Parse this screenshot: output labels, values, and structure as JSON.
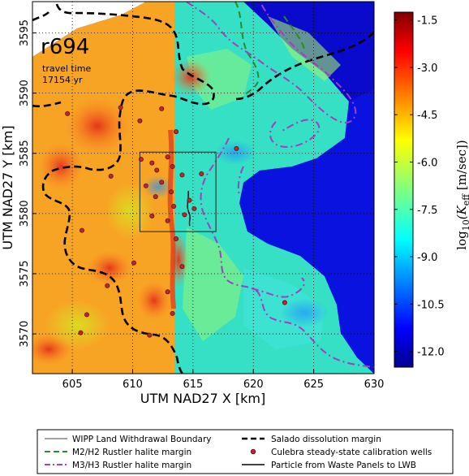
{
  "chart_data": {
    "type": "heatmap",
    "panel_label": "r694",
    "annotation_line1": "travel time",
    "annotation_line2": "17154 yr",
    "xlabel": "UTM NAD27 X [km]",
    "ylabel": "UTM NAD27 Y [km]",
    "xlim": [
      601.7,
      630.0
    ],
    "ylim": [
      3566.7,
      3597.6
    ],
    "xticks": [
      605,
      610,
      615,
      620,
      625,
      630
    ],
    "yticks": [
      3570,
      3575,
      3580,
      3585,
      3590,
      3595
    ],
    "grid": true,
    "colorbar": {
      "label_main": "log",
      "label_sub": "10",
      "label_rest": "(K",
      "label_rest_sub": "eff",
      "label_units": " [m/sec])",
      "range": [
        -12.5,
        -1.25
      ],
      "ticks": [
        "-1.5",
        "-3.0",
        "-4.5",
        "-6.0",
        "-7.5",
        "-9.0",
        "-10.5",
        "-12.0"
      ]
    },
    "wipp_boundary_box": {
      "x": [
        610.6,
        616.9
      ],
      "y": [
        3578.5,
        3585.1
      ]
    },
    "calibration_wells": [
      [
        604.6,
        3588.3
      ],
      [
        605.8,
        3578.6
      ],
      [
        606.2,
        3571.6
      ],
      [
        607.9,
        3574.0
      ],
      [
        608.2,
        3583.1
      ],
      [
        609.0,
        3588.8
      ],
      [
        612.4,
        3588.7
      ],
      [
        613.6,
        3586.8
      ],
      [
        610.7,
        3584.5
      ],
      [
        611.6,
        3584.2
      ],
      [
        612.0,
        3583.6
      ],
      [
        612.9,
        3584.7
      ],
      [
        613.3,
        3583.9
      ],
      [
        614.1,
        3583.2
      ],
      [
        611.1,
        3582.3
      ],
      [
        612.4,
        3582.6
      ],
      [
        613.2,
        3581.8
      ],
      [
        614.7,
        3581.1
      ],
      [
        611.9,
        3581.4
      ],
      [
        613.4,
        3580.6
      ],
      [
        615.1,
        3580.4
      ],
      [
        611.6,
        3579.8
      ],
      [
        612.9,
        3579.4
      ],
      [
        614.3,
        3579.9
      ],
      [
        615.7,
        3583.3
      ],
      [
        613.6,
        3577.9
      ],
      [
        614.1,
        3575.6
      ],
      [
        610.1,
        3575.9
      ],
      [
        612.9,
        3573.5
      ],
      [
        613.3,
        3571.7
      ],
      [
        611.4,
        3569.9
      ],
      [
        618.6,
        3585.4
      ],
      [
        622.6,
        3572.6
      ],
      [
        605.7,
        3570.1
      ],
      [
        610.6,
        3587.7
      ]
    ],
    "legend": [
      {
        "label": "WIPP Land Withdrawal Boundary",
        "style": "thin-black-line"
      },
      {
        "label": "M2/H2 Rustler halite margin",
        "style": "green-dashed"
      },
      {
        "label": "M3/H3 Rustler halite margin",
        "style": "purple-dashdot"
      },
      {
        "label": "Salado dissolution margin",
        "style": "black-dashed"
      },
      {
        "label": "Culebra steady-state calibration wells",
        "style": "red-dot"
      },
      {
        "label": "Particle from Waste Panels to LWB",
        "style": "black-line"
      }
    ]
  },
  "colors": {
    "line_green": "#2a8a2a",
    "line_purple": "#a040c0",
    "well_fill": "#c0262b",
    "well_edge": "#5a1010"
  }
}
